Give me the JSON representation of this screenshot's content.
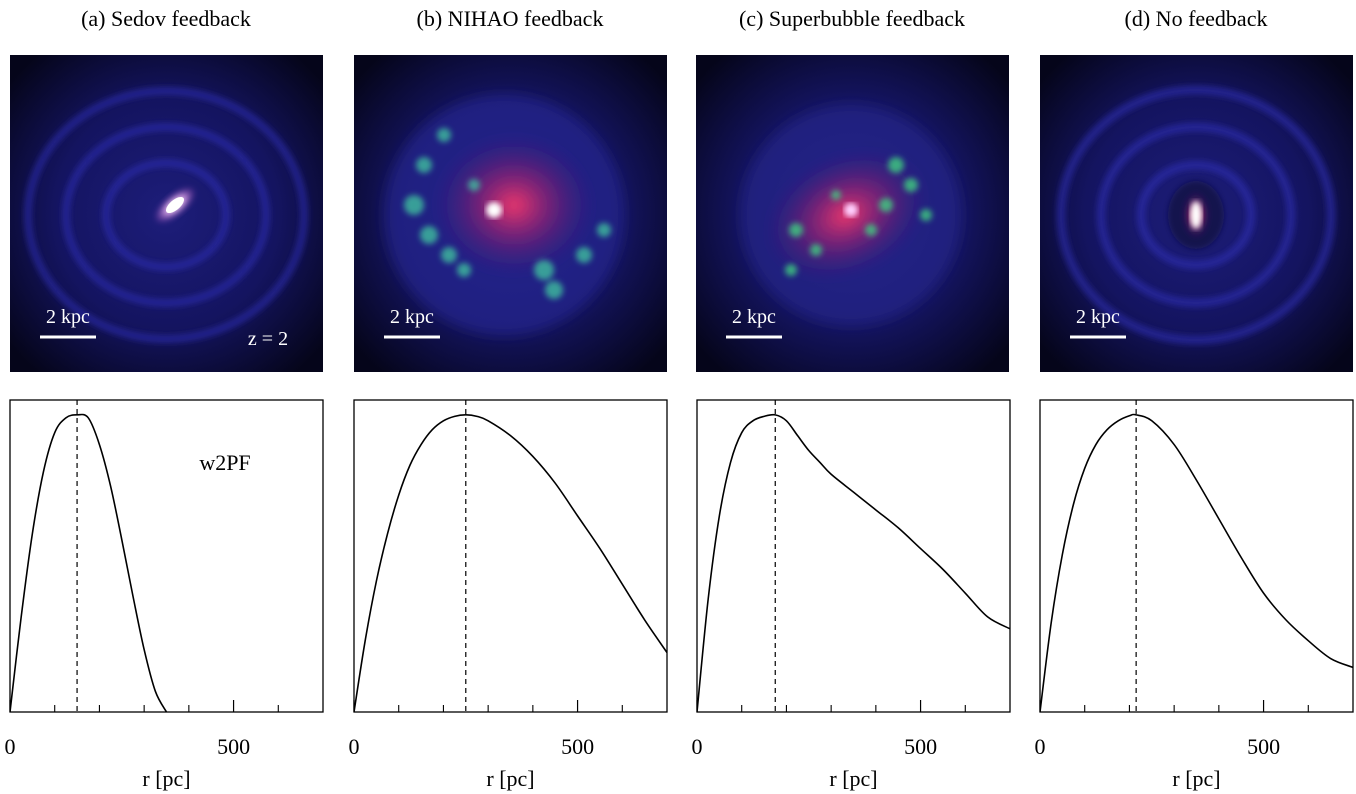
{
  "figure": {
    "panels": [
      {
        "title": "(a) Sedov feedback",
        "image": {
          "scale_label": "2 kpc",
          "redshift_label": "z = 2",
          "style": "sedov"
        }
      },
      {
        "title": "(b) NIHAO feedback",
        "image": {
          "scale_label": "2 kpc",
          "redshift_label": "",
          "style": "nihao"
        }
      },
      {
        "title": "(c) Superbubble feedback",
        "image": {
          "scale_label": "2 kpc",
          "redshift_label": "",
          "style": "superbubble"
        }
      },
      {
        "title": "(d) No feedback",
        "image": {
          "scale_label": "2 kpc",
          "redshift_label": "",
          "style": "nofeedback"
        }
      }
    ],
    "colors": {
      "image_background": "#05051a",
      "disk": "#2a2aa8",
      "gas_hot": "#e0306a",
      "star_forming": "#40d080",
      "core": "#ffffff"
    }
  },
  "chart_data": [
    {
      "type": "line",
      "xlabel": "r [pc]",
      "xlim": [
        0,
        700
      ],
      "xticks": [
        0,
        500
      ],
      "xticks_minor": [
        100,
        200,
        300,
        400,
        600
      ],
      "ylim": [
        0,
        1.05
      ],
      "annotation": "w2PF",
      "peak_x": 150,
      "x": [
        0,
        25,
        50,
        75,
        100,
        125,
        150,
        175,
        200,
        225,
        250,
        275,
        300,
        325,
        350
      ],
      "y": [
        0,
        0.32,
        0.6,
        0.81,
        0.94,
        0.99,
        1.0,
        0.99,
        0.9,
        0.76,
        0.58,
        0.39,
        0.21,
        0.07,
        0
      ]
    },
    {
      "type": "line",
      "xlabel": "r [pc]",
      "xlim": [
        0,
        700
      ],
      "xticks": [
        0,
        500
      ],
      "xticks_minor": [
        100,
        200,
        300,
        400,
        600
      ],
      "ylim": [
        0,
        1.05
      ],
      "annotation": "",
      "peak_x": 250,
      "x": [
        0,
        25,
        50,
        75,
        100,
        125,
        150,
        175,
        200,
        225,
        250,
        275,
        300,
        350,
        400,
        450,
        500,
        550,
        600,
        650,
        700
      ],
      "y": [
        0,
        0.24,
        0.44,
        0.6,
        0.73,
        0.83,
        0.9,
        0.95,
        0.98,
        0.995,
        1.0,
        0.995,
        0.98,
        0.93,
        0.86,
        0.77,
        0.66,
        0.55,
        0.43,
        0.31,
        0.2
      ]
    },
    {
      "type": "line",
      "xlabel": "r [pc]",
      "xlim": [
        0,
        700
      ],
      "xticks": [
        0,
        500
      ],
      "xticks_minor": [
        100,
        200,
        300,
        400,
        600
      ],
      "ylim": [
        0,
        1.05
      ],
      "annotation": "",
      "peak_x": 175,
      "x": [
        0,
        25,
        50,
        75,
        100,
        125,
        150,
        175,
        200,
        225,
        250,
        275,
        300,
        350,
        400,
        450,
        500,
        550,
        600,
        650,
        700
      ],
      "y": [
        0,
        0.38,
        0.66,
        0.84,
        0.94,
        0.98,
        0.995,
        1.0,
        0.98,
        0.93,
        0.88,
        0.84,
        0.8,
        0.74,
        0.68,
        0.62,
        0.55,
        0.48,
        0.4,
        0.32,
        0.28
      ]
    },
    {
      "type": "line",
      "xlabel": "r [pc]",
      "xlim": [
        0,
        700
      ],
      "xticks": [
        0,
        500
      ],
      "xticks_minor": [
        100,
        200,
        300,
        400,
        600
      ],
      "ylim": [
        0,
        1.05
      ],
      "annotation": "",
      "peak_x": 215,
      "x": [
        0,
        25,
        50,
        75,
        100,
        125,
        150,
        175,
        200,
        215,
        250,
        300,
        350,
        400,
        450,
        500,
        550,
        600,
        650,
        700
      ],
      "y": [
        0,
        0.3,
        0.53,
        0.7,
        0.82,
        0.9,
        0.95,
        0.98,
        0.997,
        1.0,
        0.98,
        0.9,
        0.78,
        0.65,
        0.52,
        0.4,
        0.31,
        0.24,
        0.18,
        0.15
      ]
    }
  ]
}
